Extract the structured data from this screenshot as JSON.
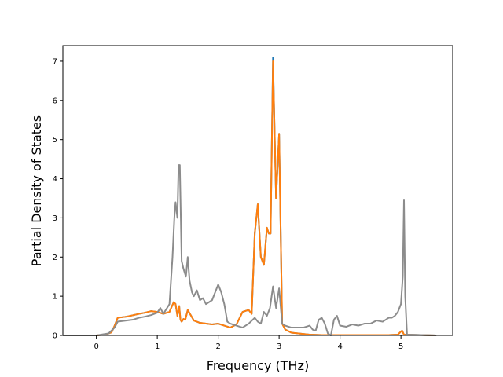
{
  "chart_data": {
    "type": "line",
    "title": "",
    "xlabel": "Frequency (THz)",
    "ylabel": "Partial Density of States",
    "xlim": [
      -0.55,
      5.85
    ],
    "ylim": [
      0,
      7.4
    ],
    "xticks": [
      0,
      1,
      2,
      3,
      4,
      5
    ],
    "yticks": [
      0,
      1,
      2,
      3,
      4,
      5,
      6,
      7
    ],
    "xtick_labels": [
      "0",
      "1",
      "2",
      "3",
      "4",
      "5"
    ],
    "ytick_labels": [
      "0",
      "1",
      "2",
      "3",
      "4",
      "5",
      "6",
      "7"
    ],
    "grid": false,
    "legend": "none",
    "series": [
      {
        "color": "#1f77b4",
        "x": [
          -0.55,
          0.0,
          0.15,
          0.25,
          0.3,
          0.35,
          0.5,
          0.7,
          0.8,
          0.9,
          1.0,
          1.1,
          1.2,
          1.25,
          1.27,
          1.3,
          1.33,
          1.36,
          1.38,
          1.4,
          1.43,
          1.46,
          1.5,
          1.6,
          1.7,
          1.8,
          1.9,
          2.0,
          2.1,
          2.2,
          2.3,
          2.4,
          2.5,
          2.55,
          2.6,
          2.65,
          2.7,
          2.75,
          2.8,
          2.83,
          2.86,
          2.9,
          2.92,
          2.95,
          3.0,
          3.05,
          3.1,
          3.2,
          3.5,
          3.7,
          4.0,
          4.2,
          4.4,
          4.6,
          4.8,
          4.95,
          5.0,
          5.02,
          5.05,
          5.58
        ],
        "values": [
          0,
          0,
          0.02,
          0.08,
          0.25,
          0.45,
          0.48,
          0.55,
          0.58,
          0.62,
          0.6,
          0.55,
          0.6,
          0.78,
          0.85,
          0.8,
          0.5,
          0.75,
          0.4,
          0.35,
          0.42,
          0.4,
          0.65,
          0.38,
          0.32,
          0.3,
          0.28,
          0.3,
          0.25,
          0.2,
          0.28,
          0.6,
          0.65,
          0.55,
          2.6,
          3.35,
          2.0,
          1.8,
          2.75,
          2.6,
          2.6,
          7.1,
          5.6,
          3.5,
          5.15,
          0.3,
          0.15,
          0.07,
          0.02,
          0.01,
          0.01,
          0.01,
          0.01,
          0.01,
          0.01,
          0.02,
          0.1,
          0.12,
          0.02,
          0
        ]
      },
      {
        "color": "#ff7f0e",
        "x": [
          -0.55,
          0.0,
          0.15,
          0.25,
          0.3,
          0.35,
          0.5,
          0.7,
          0.8,
          0.9,
          1.0,
          1.1,
          1.2,
          1.25,
          1.27,
          1.3,
          1.33,
          1.36,
          1.38,
          1.4,
          1.43,
          1.46,
          1.5,
          1.6,
          1.7,
          1.8,
          1.9,
          2.0,
          2.1,
          2.2,
          2.3,
          2.4,
          2.5,
          2.55,
          2.6,
          2.65,
          2.7,
          2.75,
          2.8,
          2.83,
          2.86,
          2.9,
          2.92,
          2.95,
          3.0,
          3.05,
          3.1,
          3.2,
          3.5,
          3.7,
          4.0,
          4.2,
          4.4,
          4.6,
          4.8,
          4.95,
          5.0,
          5.02,
          5.05,
          5.58
        ],
        "values": [
          0,
          0,
          0.02,
          0.08,
          0.25,
          0.45,
          0.48,
          0.55,
          0.58,
          0.62,
          0.6,
          0.55,
          0.6,
          0.78,
          0.85,
          0.8,
          0.5,
          0.75,
          0.4,
          0.35,
          0.42,
          0.4,
          0.65,
          0.38,
          0.32,
          0.3,
          0.28,
          0.3,
          0.25,
          0.2,
          0.28,
          0.6,
          0.65,
          0.55,
          2.6,
          3.35,
          2.0,
          1.8,
          2.75,
          2.6,
          2.6,
          7.0,
          5.6,
          3.5,
          5.15,
          0.3,
          0.15,
          0.07,
          0.02,
          0.01,
          0.01,
          0.01,
          0.01,
          0.01,
          0.01,
          0.02,
          0.1,
          0.12,
          0.02,
          0
        ]
      },
      {
        "color": "#8c8c8c",
        "x": [
          -0.55,
          0.0,
          0.2,
          0.3,
          0.35,
          0.5,
          0.6,
          0.7,
          0.8,
          0.9,
          1.0,
          1.05,
          1.1,
          1.2,
          1.25,
          1.28,
          1.3,
          1.33,
          1.35,
          1.37,
          1.4,
          1.43,
          1.47,
          1.5,
          1.53,
          1.57,
          1.6,
          1.65,
          1.7,
          1.75,
          1.8,
          1.85,
          1.9,
          2.0,
          2.05,
          2.1,
          2.15,
          2.2,
          2.3,
          2.4,
          2.5,
          2.6,
          2.65,
          2.7,
          2.75,
          2.8,
          2.85,
          2.9,
          2.95,
          3.0,
          3.05,
          3.1,
          3.2,
          3.3,
          3.4,
          3.5,
          3.55,
          3.6,
          3.65,
          3.7,
          3.75,
          3.8,
          3.85,
          3.9,
          3.95,
          4.0,
          4.1,
          4.2,
          4.3,
          4.4,
          4.5,
          4.6,
          4.7,
          4.8,
          4.85,
          4.9,
          4.95,
          5.0,
          5.03,
          5.05,
          5.07,
          5.1,
          5.58
        ],
        "values": [
          0,
          0,
          0.05,
          0.2,
          0.35,
          0.38,
          0.4,
          0.45,
          0.48,
          0.52,
          0.58,
          0.7,
          0.55,
          0.8,
          2.0,
          3.0,
          3.4,
          3.0,
          4.35,
          4.35,
          1.9,
          1.7,
          1.5,
          2.0,
          1.4,
          1.1,
          1.0,
          1.15,
          0.9,
          0.95,
          0.8,
          0.85,
          0.9,
          1.3,
          1.1,
          0.8,
          0.35,
          0.3,
          0.25,
          0.2,
          0.3,
          0.45,
          0.35,
          0.3,
          0.6,
          0.5,
          0.7,
          1.25,
          0.7,
          1.2,
          0.3,
          0.25,
          0.2,
          0.2,
          0.2,
          0.25,
          0.15,
          0.12,
          0.4,
          0.45,
          0.3,
          0.05,
          0.0,
          0.4,
          0.5,
          0.25,
          0.22,
          0.28,
          0.25,
          0.3,
          0.3,
          0.38,
          0.35,
          0.45,
          0.45,
          0.5,
          0.6,
          0.8,
          1.5,
          3.45,
          1.0,
          0.02,
          0
        ]
      }
    ]
  }
}
